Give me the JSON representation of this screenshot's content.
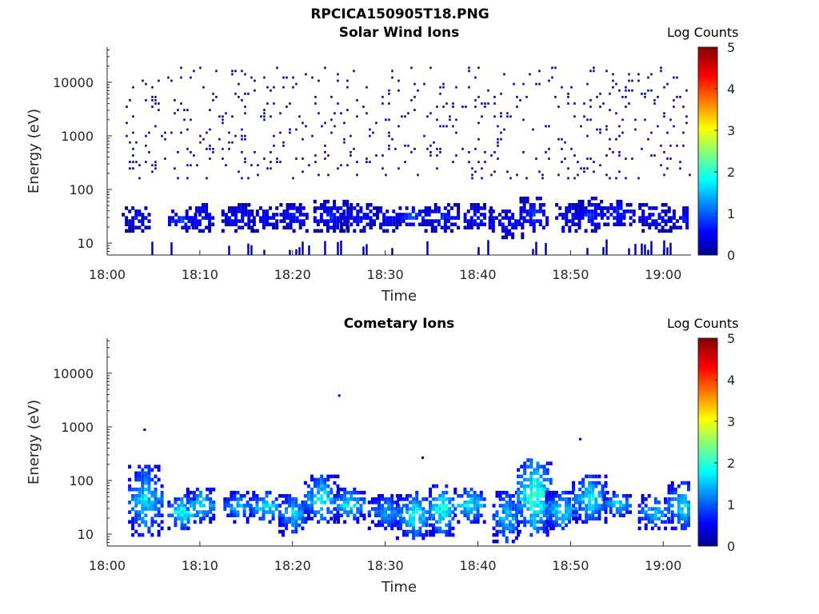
{
  "figure": {
    "title": "RPCICA150905T18.PNG"
  },
  "colorbar": {
    "label": "Log Counts",
    "ticks": [
      "0",
      "1",
      "2",
      "3",
      "4",
      "5"
    ],
    "range": [
      0,
      5
    ],
    "colormap": "jet"
  },
  "chart_data": [
    {
      "type": "heatmap",
      "title": "Solar Wind Ions",
      "xlabel": "Time",
      "ylabel": "Energy (eV)",
      "xticks": [
        "18:00",
        "18:10",
        "18:20",
        "18:30",
        "18:40",
        "18:50",
        "19:00"
      ],
      "xlim": [
        "18:00",
        "19:03"
      ],
      "yscale": "log",
      "yticks": [
        "10",
        "100",
        "1000",
        "10000"
      ],
      "ylim": [
        6,
        45000
      ],
      "clim": [
        0,
        5
      ],
      "bursts": [
        {
          "time": "18:03",
          "energy_low": 20,
          "energy_high": 45,
          "peak_log_counts": 0.8
        },
        {
          "time": "18:08",
          "energy_low": 20,
          "energy_high": 40,
          "peak_log_counts": 1.2
        },
        {
          "time": "18:10",
          "energy_low": 20,
          "energy_high": 55,
          "peak_log_counts": 0.9
        },
        {
          "time": "18:14",
          "energy_low": 20,
          "energy_high": 50,
          "peak_log_counts": 0.9
        },
        {
          "time": "18:17",
          "energy_low": 20,
          "energy_high": 45,
          "peak_log_counts": 0.8
        },
        {
          "time": "18:20",
          "energy_low": 20,
          "energy_high": 55,
          "peak_log_counts": 0.9
        },
        {
          "time": "18:24",
          "energy_low": 20,
          "energy_high": 60,
          "peak_log_counts": 1.0
        },
        {
          "time": "18:27",
          "energy_low": 20,
          "energy_high": 55,
          "peak_log_counts": 0.9
        },
        {
          "time": "18:30",
          "energy_low": 20,
          "energy_high": 45,
          "peak_log_counts": 0.8
        },
        {
          "time": "18:33",
          "energy_low": 25,
          "energy_high": 45,
          "peak_log_counts": 1.3
        },
        {
          "time": "18:36",
          "energy_low": 20,
          "energy_high": 55,
          "peak_log_counts": 1.0
        },
        {
          "time": "18:40",
          "energy_low": 20,
          "energy_high": 50,
          "peak_log_counts": 1.0
        },
        {
          "time": "18:43",
          "energy_low": 15,
          "energy_high": 40,
          "peak_log_counts": 0.9
        },
        {
          "time": "18:46",
          "energy_low": 20,
          "energy_high": 70,
          "peak_log_counts": 1.1
        },
        {
          "time": "18:50",
          "energy_low": 20,
          "energy_high": 50,
          "peak_log_counts": 0.9
        },
        {
          "time": "18:52",
          "energy_low": 20,
          "energy_high": 65,
          "peak_log_counts": 1.0
        },
        {
          "time": "18:55",
          "energy_low": 25,
          "energy_high": 60,
          "peak_log_counts": 1.0
        },
        {
          "time": "18:59",
          "energy_low": 20,
          "energy_high": 50,
          "peak_log_counts": 0.8
        },
        {
          "time": "19:02",
          "energy_low": 20,
          "energy_high": 45,
          "peak_log_counts": 1.0
        }
      ],
      "background": {
        "energy_low": 150,
        "energy_high": 20000,
        "log_counts": 0.2
      }
    },
    {
      "type": "heatmap",
      "title": "Cometary Ions",
      "xlabel": "Time",
      "ylabel": "Energy (eV)",
      "xticks": [
        "18:00",
        "18:10",
        "18:20",
        "18:30",
        "18:40",
        "18:50",
        "19:00"
      ],
      "xlim": [
        "18:00",
        "19:03"
      ],
      "yscale": "log",
      "yticks": [
        "10",
        "100",
        "1000",
        "10000"
      ],
      "ylim": [
        6,
        45000
      ],
      "clim": [
        0,
        5
      ],
      "bursts": [
        {
          "time": "18:04",
          "energy_low": 12,
          "energy_high": 180,
          "peak_log_counts": 2.1
        },
        {
          "time": "18:08",
          "energy_low": 15,
          "energy_high": 50,
          "peak_log_counts": 2.5
        },
        {
          "time": "18:10",
          "energy_low": 20,
          "energy_high": 70,
          "peak_log_counts": 2.3
        },
        {
          "time": "18:14",
          "energy_low": 20,
          "energy_high": 60,
          "peak_log_counts": 2.0
        },
        {
          "time": "18:17",
          "energy_low": 20,
          "energy_high": 60,
          "peak_log_counts": 2.3
        },
        {
          "time": "18:20",
          "energy_low": 12,
          "energy_high": 60,
          "peak_log_counts": 2.0
        },
        {
          "time": "18:23",
          "energy_low": 20,
          "energy_high": 120,
          "peak_log_counts": 2.3
        },
        {
          "time": "18:26",
          "energy_low": 20,
          "energy_high": 70,
          "peak_log_counts": 2.3
        },
        {
          "time": "18:30",
          "energy_low": 15,
          "energy_high": 55,
          "peak_log_counts": 1.8
        },
        {
          "time": "18:33",
          "energy_low": 10,
          "energy_high": 60,
          "peak_log_counts": 2.3
        },
        {
          "time": "18:36",
          "energy_low": 12,
          "energy_high": 80,
          "peak_log_counts": 2.6
        },
        {
          "time": "18:39",
          "energy_low": 20,
          "energy_high": 70,
          "peak_log_counts": 2.4
        },
        {
          "time": "18:43",
          "energy_low": 8,
          "energy_high": 60,
          "peak_log_counts": 2.0
        },
        {
          "time": "18:46",
          "energy_low": 12,
          "energy_high": 250,
          "peak_log_counts": 2.8
        },
        {
          "time": "18:49",
          "energy_low": 15,
          "energy_high": 60,
          "peak_log_counts": 2.3
        },
        {
          "time": "18:52",
          "energy_low": 20,
          "energy_high": 120,
          "peak_log_counts": 2.3
        },
        {
          "time": "18:55",
          "energy_low": 25,
          "energy_high": 60,
          "peak_log_counts": 2.2
        },
        {
          "time": "18:59",
          "energy_low": 15,
          "energy_high": 50,
          "peak_log_counts": 2.0
        },
        {
          "time": "19:02",
          "energy_low": 15,
          "energy_high": 90,
          "peak_log_counts": 2.2
        }
      ],
      "isolated_points": [
        {
          "time": "18:04",
          "energy": 900
        },
        {
          "time": "18:25",
          "energy": 3900
        },
        {
          "time": "18:34",
          "energy": 270
        },
        {
          "time": "18:51",
          "energy": 600
        }
      ]
    }
  ]
}
